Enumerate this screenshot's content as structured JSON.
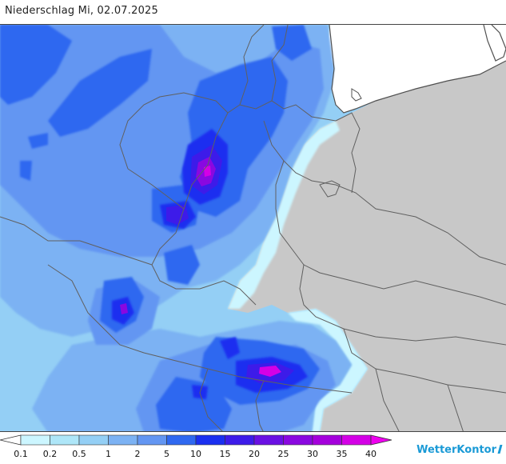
{
  "title": "Niederschlag Mi, 02.07.2025",
  "brand": "WetterKontor",
  "legend": {
    "thresholds": [
      "0.1",
      "0.2",
      "0.5",
      "1",
      "2",
      "5",
      "10",
      "15",
      "20",
      "25",
      "30",
      "35",
      "40"
    ],
    "colors": [
      "#ccf6ff",
      "#aee6f8",
      "#94cff5",
      "#7cb2f3",
      "#6396f2",
      "#2f68f0",
      "#1a2ff0",
      "#3d1be9",
      "#6a10e3",
      "#8a08e0",
      "#a500dc",
      "#d400e6",
      "#ee00ee"
    ]
  },
  "map": {
    "land_color": "#c8c8c8",
    "sea_color": "#ffffff",
    "border_color": "#606060",
    "base_precip_color": "#94cff5"
  }
}
